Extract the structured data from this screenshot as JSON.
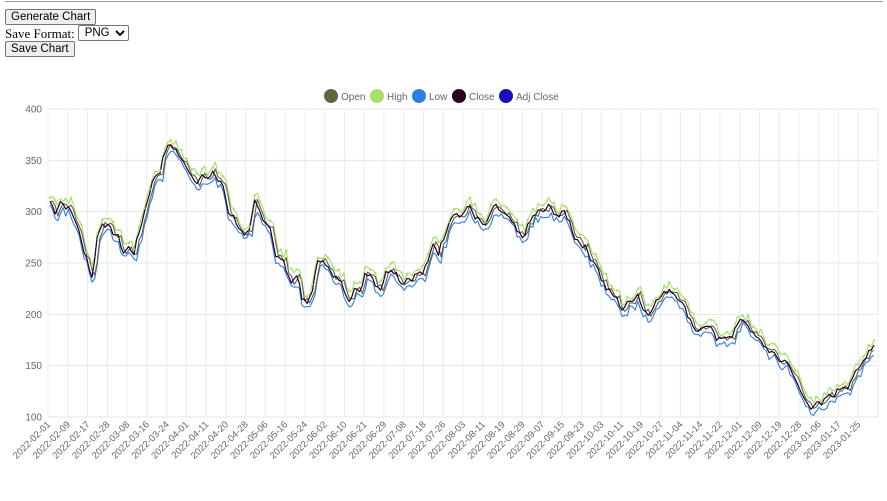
{
  "controls": {
    "generate_label": "Generate Chart",
    "format_label": "Save Format:",
    "format_selected": "PNG",
    "save_label": "Save Chart"
  },
  "colors": {
    "open": "#636343",
    "high": "#a4e16a",
    "low": "#2d7fe6",
    "close": "#290020",
    "adj_close": "#1a0dbc"
  },
  "chart_data": {
    "type": "line",
    "title": "",
    "xlabel": "",
    "ylabel": "",
    "ylim": [
      100,
      400
    ],
    "yticks": [
      100,
      150,
      200,
      250,
      300,
      350,
      400
    ],
    "grid": true,
    "legend_position": "top-center",
    "x_tick_labels": [
      "2022-02-01",
      "2022-02-09",
      "2022-02-17",
      "2022-02-28",
      "2022-03-08",
      "2022-03-16",
      "2022-03-24",
      "2022-04-01",
      "2022-04-11",
      "2022-04-20",
      "2022-04-28",
      "2022-05-06",
      "2022-05-16",
      "2022-05-24",
      "2022-06-02",
      "2022-06-10",
      "2022-06-21",
      "2022-06-29",
      "2022-07-08",
      "2022-07-18",
      "2022-07-26",
      "2022-08-03",
      "2022-08-11",
      "2022-08-19",
      "2022-08-29",
      "2022-09-07",
      "2022-09-15",
      "2022-09-23",
      "2022-10-03",
      "2022-10-11",
      "2022-10-19",
      "2022-10-27",
      "2022-11-04",
      "2022-11-14",
      "2022-11-22",
      "2022-12-01",
      "2022-12-09",
      "2022-12-19",
      "2022-12-28",
      "2023-01-06",
      "2023-01-17",
      "2023-01-25"
    ],
    "close_anchor_values": [
      310,
      300,
      310,
      305,
      300,
      290,
      270,
      255,
      235,
      275,
      290,
      285,
      280,
      275,
      260,
      265,
      260,
      280,
      300,
      320,
      335,
      340,
      360,
      365,
      360,
      350,
      345,
      335,
      330,
      335,
      330,
      340,
      330,
      325,
      300,
      295,
      285,
      275,
      280,
      310,
      300,
      290,
      285,
      255,
      255,
      245,
      230,
      240,
      215,
      210,
      225,
      250,
      255,
      245,
      235,
      235,
      225,
      215,
      225,
      220,
      240,
      240,
      230,
      225,
      240,
      245,
      240,
      230,
      235,
      235,
      240,
      240,
      250,
      270,
      260,
      275,
      290,
      300,
      295,
      300,
      305,
      295,
      290,
      285,
      300,
      305,
      300,
      295,
      290,
      280,
      275,
      285,
      295,
      300,
      300,
      305,
      300,
      295,
      300,
      290,
      275,
      270,
      265,
      255,
      250,
      235,
      225,
      220,
      215,
      205,
      210,
      215,
      220,
      205,
      200,
      210,
      215,
      220,
      225,
      220,
      215,
      205,
      195,
      185,
      185,
      190,
      185,
      175,
      175,
      180,
      180,
      190,
      195,
      190,
      180,
      175,
      170,
      165,
      160,
      155,
      155,
      150,
      135,
      125,
      115,
      110,
      115,
      110,
      120,
      120,
      125,
      130,
      130,
      140,
      145,
      155,
      165,
      170
    ]
  }
}
